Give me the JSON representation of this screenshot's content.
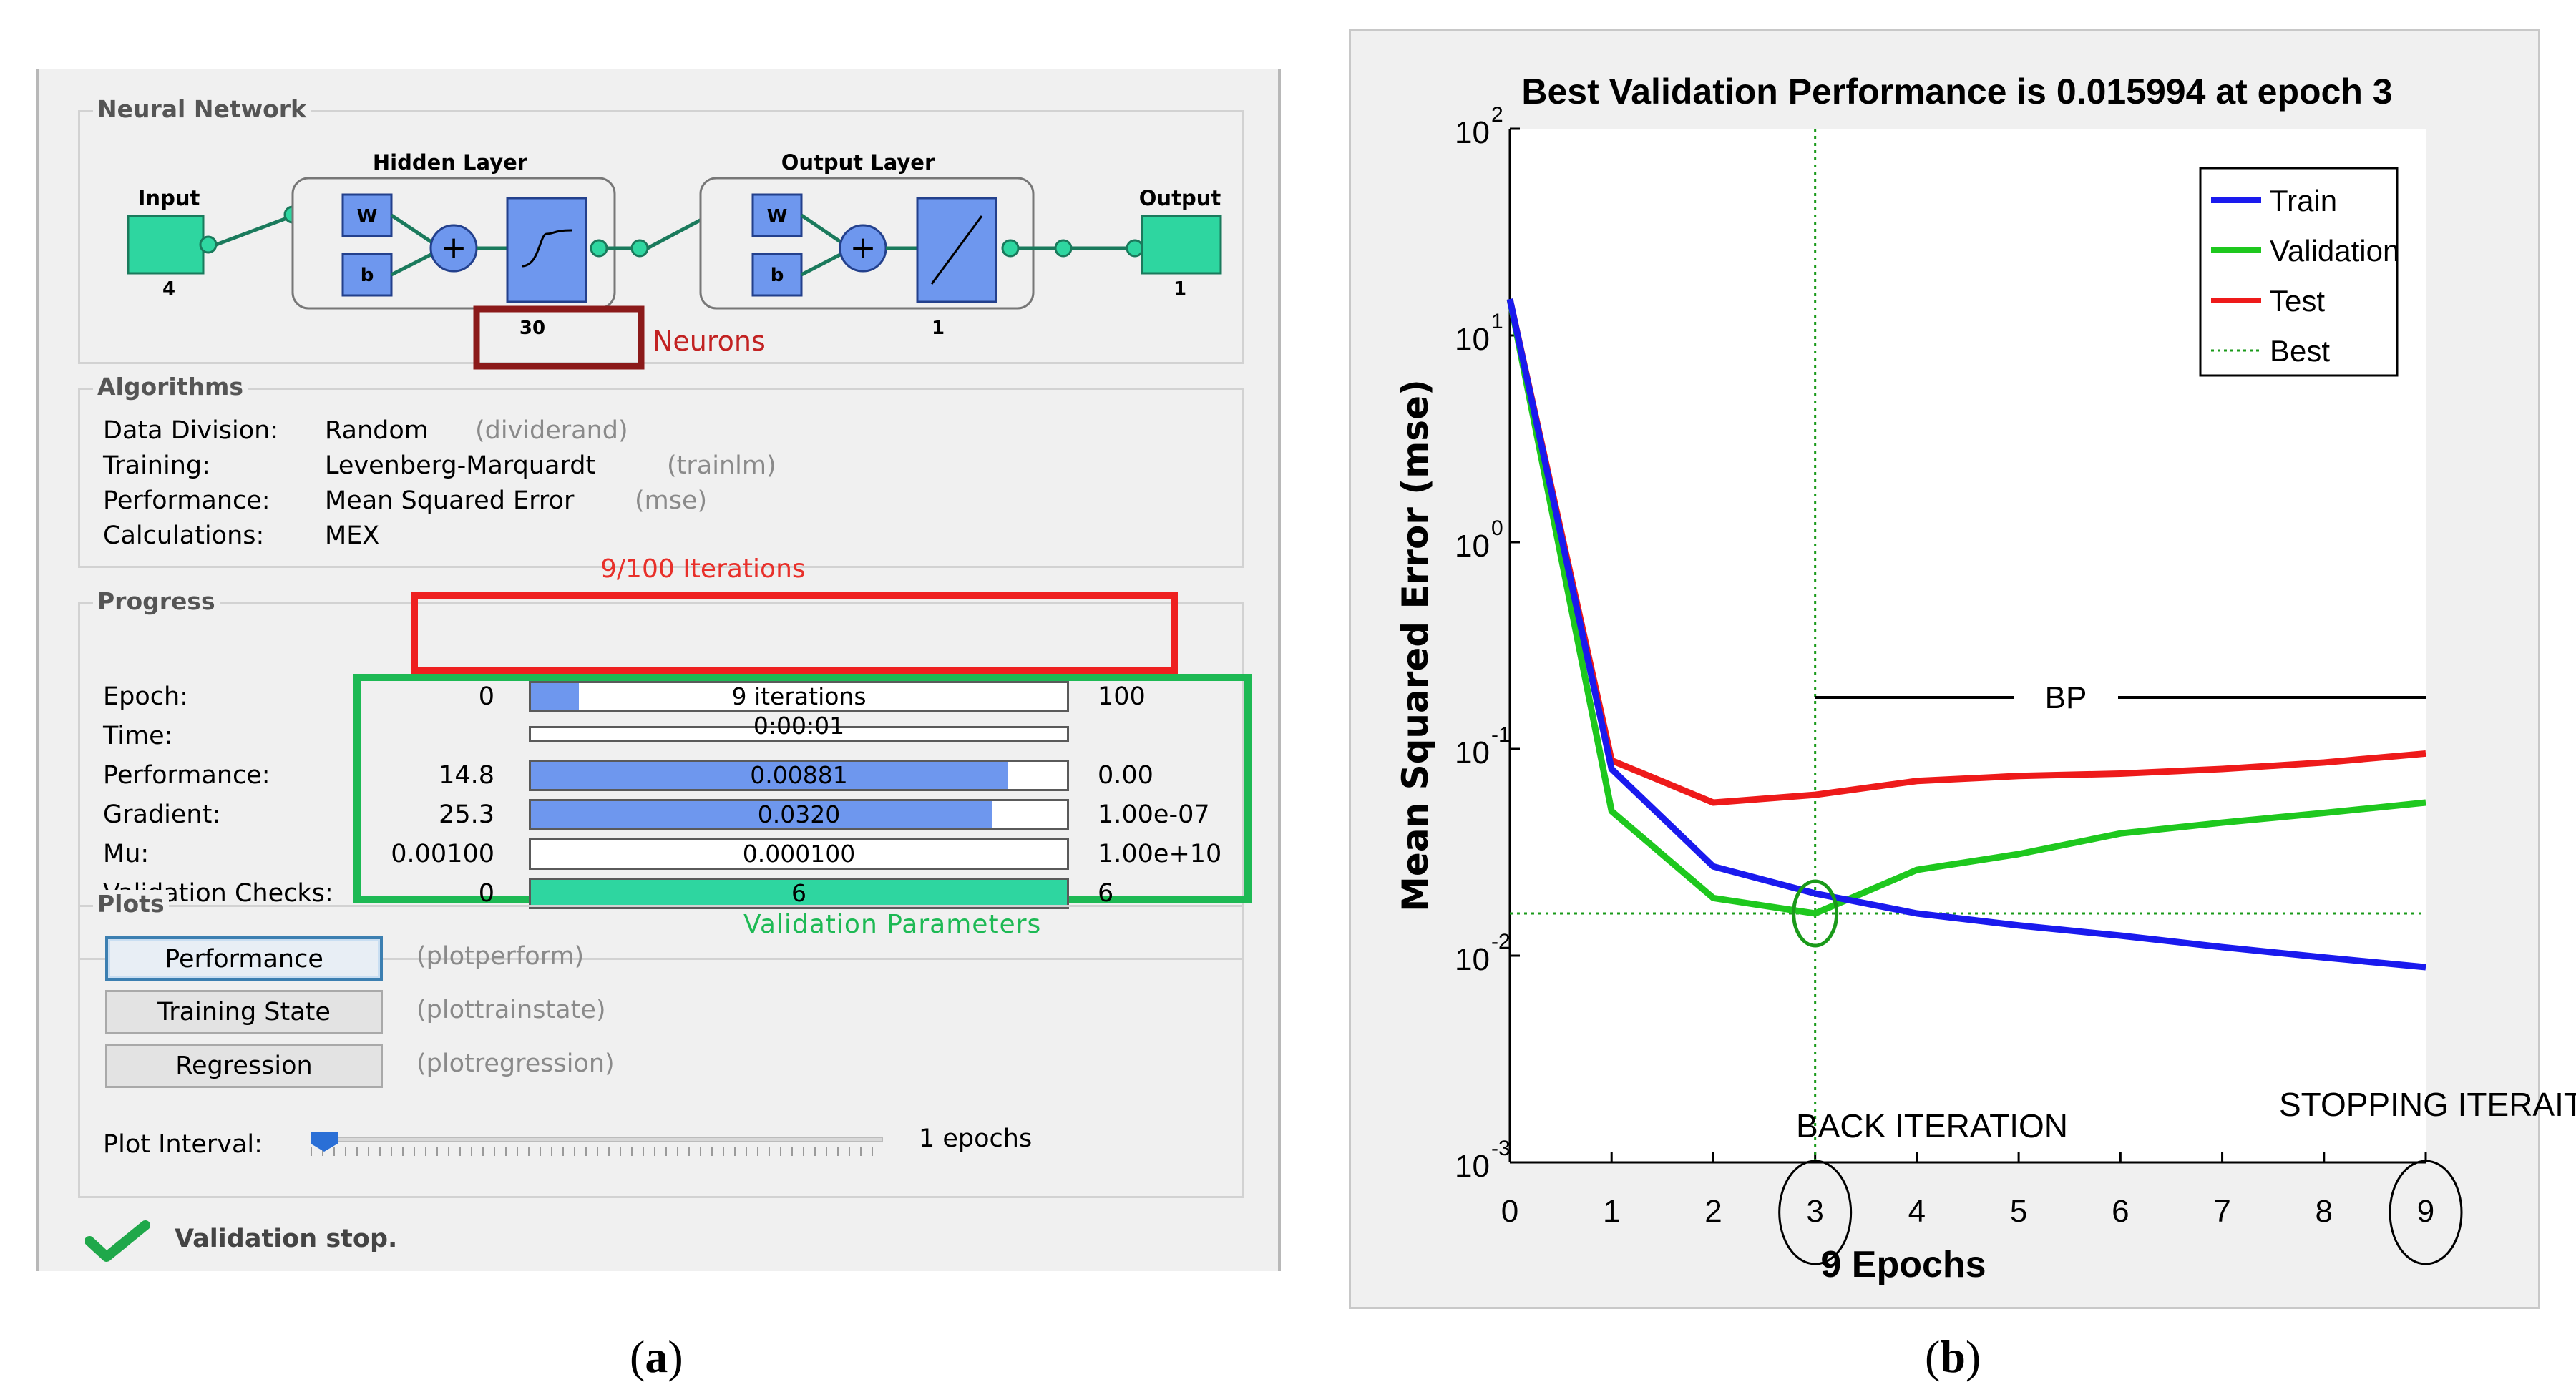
{
  "panel_a": {
    "caption": "a",
    "neural_network": {
      "group_title": "Neural Network",
      "input_label": "Input",
      "input_size": "4",
      "hidden_layer_title": "Hidden Layer",
      "hidden_neurons": "30",
      "output_layer_title": "Output Layer",
      "output_layer_neurons": "1",
      "output_label": "Output",
      "output_size": "1",
      "weight_label": "W",
      "bias_label": "b",
      "neurons_annotation": "Neurons"
    },
    "algorithms": {
      "group_title": "Algorithms",
      "rows": [
        {
          "label": "Data Division:",
          "value": "Random",
          "fn": "(dividerand)"
        },
        {
          "label": "Training:",
          "value": "Levenberg-Marquardt",
          "fn": "(trainlm)"
        },
        {
          "label": "Performance:",
          "value": "Mean Squared Error",
          "fn": "(mse)"
        },
        {
          "label": "Calculations:",
          "value": "MEX",
          "fn": ""
        }
      ]
    },
    "progress": {
      "group_title": "Progress",
      "iterations_annotation": "9/100 Iterations",
      "validation_annotation": "Validation Parameters",
      "rows": [
        {
          "label": "Epoch:",
          "start": "0",
          "bar_text": "9 iterations",
          "end": "100",
          "fill": 0.09
        },
        {
          "label": "Time:",
          "start": "",
          "bar_text": "0:00:01",
          "end": "",
          "fill": 0
        },
        {
          "label": "Performance:",
          "start": "14.8",
          "bar_text": "0.00881",
          "end": "0.00",
          "fill": 0.89
        },
        {
          "label": "Gradient:",
          "start": "25.3",
          "bar_text": "0.0320",
          "end": "1.00e-07",
          "fill": 0.86
        },
        {
          "label": "Mu:",
          "start": "0.00100",
          "bar_text": "0.000100",
          "end": "1.00e+10",
          "fill": 0
        },
        {
          "label": "Validation Checks:",
          "start": "0",
          "bar_text": "6",
          "end": "6",
          "fill": 1.0
        }
      ]
    },
    "plots": {
      "group_title": "Plots",
      "buttons": [
        {
          "label": "Performance",
          "fn": "(plotperform)"
        },
        {
          "label": "Training State",
          "fn": "(plottrainstate)"
        },
        {
          "label": "Regression",
          "fn": "(plotregression)"
        }
      ],
      "plot_interval_label": "Plot Interval:",
      "plot_interval_value": "1 epochs",
      "slider_value": 1
    },
    "status_text": "Validation stop.",
    "colors": {
      "bar_fill": "#6e97ee",
      "validation_fill": "#2ed6a0",
      "annot_red": "#e8302a",
      "annot_green": "#1db954",
      "box_dark_red": "#8b1a1a",
      "node_green": "#2ed6a0",
      "node_blue": "#6e97ee"
    }
  },
  "panel_b": {
    "caption": "b",
    "chart_data": {
      "type": "line",
      "title": "Best Validation Performance is 0.015994 at epoch 3",
      "xlabel": "9 Epochs",
      "ylabel": "Mean Squared Error  (mse)",
      "yscale": "log",
      "xlim": [
        0,
        9
      ],
      "ylim": [
        0.001,
        100
      ],
      "x": [
        0,
        1,
        2,
        3,
        4,
        5,
        6,
        7,
        8,
        9
      ],
      "xticks": [
        "0",
        "1",
        "2",
        "3",
        "4",
        "5",
        "6",
        "7",
        "8",
        "9"
      ],
      "yticks": [
        {
          "value": 0.001,
          "base": "10",
          "exp": "-3"
        },
        {
          "value": 0.01,
          "base": "10",
          "exp": "-2"
        },
        {
          "value": 0.1,
          "base": "10",
          "exp": "-1"
        },
        {
          "value": 1,
          "base": "10",
          "exp": "0"
        },
        {
          "value": 10,
          "base": "10",
          "exp": "1"
        },
        {
          "value": 100,
          "base": "10",
          "exp": "2"
        }
      ],
      "series": [
        {
          "name": "Train",
          "color": "#1a1aee",
          "values": [
            15,
            0.08,
            0.027,
            0.02,
            0.016,
            0.014,
            0.0125,
            0.011,
            0.0098,
            0.0088
          ]
        },
        {
          "name": "Validation",
          "color": "#1ec81e",
          "values": [
            15,
            0.05,
            0.019,
            0.016,
            0.026,
            0.031,
            0.039,
            0.044,
            0.049,
            0.055
          ]
        },
        {
          "name": "Test",
          "color": "#ee1a1a",
          "values": [
            15,
            0.088,
            0.055,
            0.06,
            0.07,
            0.074,
            0.076,
            0.08,
            0.086,
            0.095
          ]
        }
      ],
      "best": {
        "name": "Best",
        "epoch": 3,
        "value": 0.015994,
        "color": "#1a9a1a"
      },
      "legend_position": "top-right",
      "annotations": {
        "bp": "BP",
        "back_iteration": "BACK ITERATION",
        "stopping_iteration": "STOPPING ITERAITON"
      }
    }
  }
}
